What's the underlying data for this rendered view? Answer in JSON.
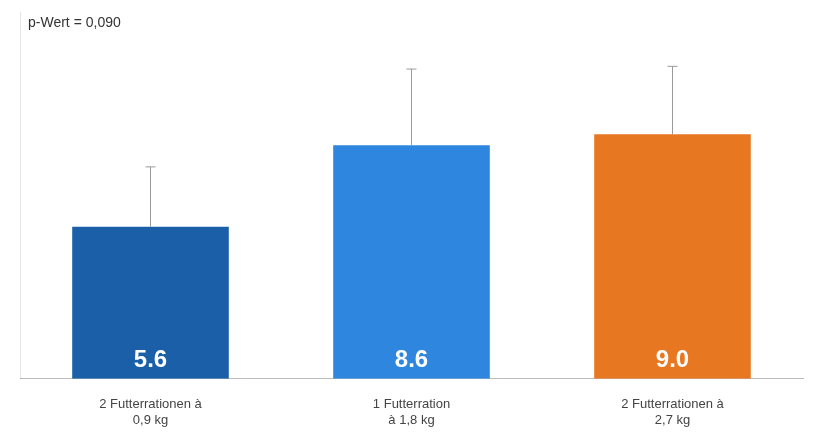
{
  "chart_data": {
    "type": "bar",
    "categories": [
      "2 Futterrationen à\n0,9 kg",
      "1 Futterration\nà 1,8 kg",
      "2 Futterrationen à\n2,7 kg"
    ],
    "values": [
      5.6,
      8.6,
      9.0
    ],
    "errors": [
      2.2,
      2.8,
      2.5
    ],
    "colors": [
      "#1a5fa8",
      "#2e86de",
      "#e87722"
    ],
    "value_labels": [
      "5.6",
      "8.6",
      "9.0"
    ],
    "data_labels": true,
    "annotation": "p-Wert = 0,090",
    "ylim": [
      0,
      13.5
    ],
    "grid": false,
    "tick_labels": "x"
  }
}
